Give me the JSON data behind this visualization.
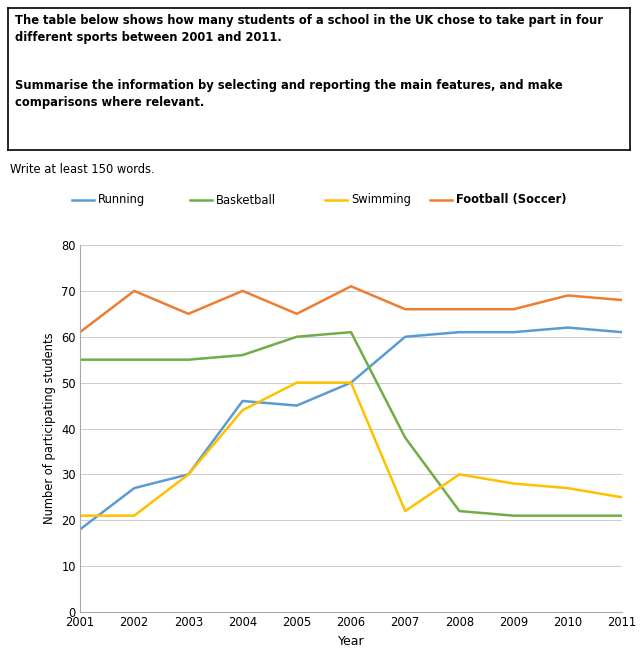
{
  "years": [
    2001,
    2002,
    2003,
    2004,
    2005,
    2006,
    2007,
    2008,
    2009,
    2010,
    2011
  ],
  "running": [
    18,
    27,
    30,
    46,
    45,
    50,
    60,
    61,
    61,
    62,
    61
  ],
  "basketball": [
    55,
    55,
    55,
    56,
    60,
    61,
    38,
    22,
    21,
    21,
    21
  ],
  "swimming": [
    21,
    21,
    30,
    44,
    50,
    50,
    22,
    30,
    28,
    27,
    25
  ],
  "football": [
    61,
    70,
    65,
    70,
    65,
    71,
    66,
    66,
    66,
    69,
    68
  ],
  "running_color": "#5b9bd5",
  "basketball_color": "#70ad47",
  "swimming_color": "#ffc000",
  "football_color": "#ed7d31",
  "title_line1": "The table below shows how many students of a school in the UK chose to take part in four",
  "title_line2": "different sports between 2001 and 2011.",
  "title_line3": "Summarise the information by selecting and reporting the main features, and make",
  "title_line4": "comparisons where relevant.",
  "subtitle_text": "Write at least 150 words.",
  "ylabel": "Number of participating students",
  "xlabel": "Year",
  "ylim": [
    0,
    80
  ],
  "yticks": [
    0,
    10,
    20,
    30,
    40,
    50,
    60,
    70,
    80
  ],
  "legend_labels": [
    "Running",
    "Basketball",
    "Swimming",
    "Football (Soccer)"
  ],
  "background_color": "#ffffff"
}
